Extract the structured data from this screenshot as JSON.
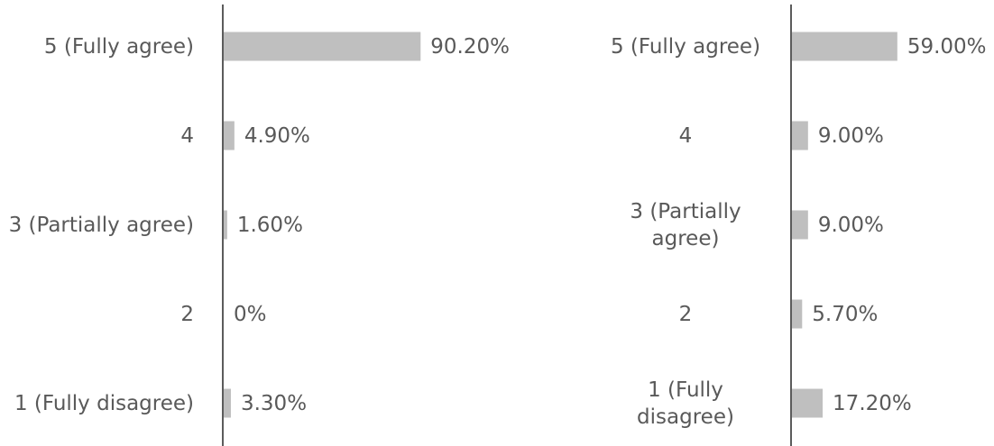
{
  "chart_data": [
    {
      "type": "bar",
      "categories": [
        "5 (Fully agree)",
        "4",
        "3 (Partially agree)",
        "2",
        "1 (Fully disagree)"
      ],
      "values": [
        90.2,
        4.9,
        1.6,
        0,
        3.3
      ],
      "value_labels": [
        "90.20%",
        "4.90%",
        "1.60%",
        "0%",
        "3.30%"
      ],
      "color": "#bfbfbf",
      "xlim": [
        0,
        100
      ]
    },
    {
      "type": "bar",
      "categories": [
        "5 (Fully agree)",
        "4",
        "3 (Partially agree)",
        "2",
        "1 (Fully disagree)"
      ],
      "values": [
        59.0,
        9.0,
        9.0,
        5.7,
        17.2
      ],
      "value_labels": [
        "59.00%",
        "9.00%",
        "9.00%",
        "5.70%",
        "17.20%"
      ],
      "color": "#bfbfbf",
      "xlim": [
        0,
        100
      ]
    }
  ]
}
